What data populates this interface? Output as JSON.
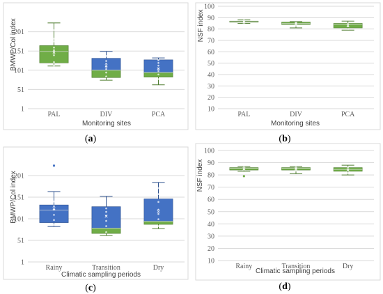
{
  "colors": {
    "green": "#70ad47",
    "blue": "#4472c4",
    "green_dark": "#507e32",
    "blue_dark": "#2f528f",
    "grid": "#d9d9d9",
    "tick": "#595959"
  },
  "chart_data": [
    {
      "panel": "a",
      "caption_letter": "a",
      "type": "box",
      "xlabel": "Monitoring sites",
      "ylabel": "BMWP/Col index",
      "ylim": [
        1,
        251
      ],
      "yticks": [
        1,
        51,
        101,
        151,
        201
      ],
      "grid": true,
      "categories": [
        "PAL",
        "DIV",
        "PCA"
      ],
      "boxes": [
        {
          "category": "PAL",
          "min": 112,
          "q1": 120,
          "median": 150,
          "q3": 165,
          "max": 224,
          "mean": 147,
          "upper_color": "green",
          "lower_color": "green",
          "points": [
            113,
            122,
            140,
            148,
            153,
            160,
            176,
            183,
            205
          ]
        },
        {
          "category": "DIV",
          "min": 75,
          "q1": 82,
          "median": 101,
          "q3": 132,
          "max": 150,
          "mean": 112,
          "upper_color": "blue",
          "lower_color": "green",
          "points": [
            85,
            95,
            104,
            110,
            118,
            125,
            138
          ]
        },
        {
          "category": "PCA",
          "min": 63,
          "q1": 83,
          "median": 95,
          "q3": 128,
          "max": 133,
          "mean": 105,
          "upper_color": "blue",
          "lower_color": "green",
          "points": [
            78,
            90,
            99,
            105,
            113,
            120,
            127
          ]
        }
      ]
    },
    {
      "panel": "b",
      "caption_letter": "b",
      "type": "box",
      "xlabel": "Monitoring sites",
      "ylabel": "NSF index",
      "ylim": [
        10,
        100
      ],
      "yticks": [
        10,
        20,
        30,
        40,
        50,
        60,
        70,
        80,
        90,
        100
      ],
      "grid": true,
      "categories": [
        "PAL",
        "DIV",
        "PCA"
      ],
      "boxes": [
        {
          "category": "PAL",
          "min": 85,
          "q1": 86,
          "median": 86.5,
          "q3": 87,
          "max": 88,
          "mean": 86.3,
          "upper_color": "green",
          "lower_color": "green",
          "points": [
            85.5,
            86.5,
            87.5
          ]
        },
        {
          "category": "DIV",
          "min": 81,
          "q1": 84,
          "median": 85,
          "q3": 86,
          "max": 86.5,
          "mean": 85,
          "upper_color": "green",
          "lower_color": "green",
          "points": [
            83,
            84.5,
            85.5
          ]
        },
        {
          "category": "PCA",
          "min": 79,
          "q1": 81,
          "median": 84,
          "q3": 85,
          "max": 87,
          "mean": 83,
          "upper_color": "green",
          "lower_color": "green",
          "points": [
            80,
            82.5,
            84.5
          ]
        }
      ]
    },
    {
      "panel": "c",
      "caption_letter": "c",
      "type": "box",
      "xlabel": "Climatic sampling periods",
      "ylabel": "BMWP/Col index",
      "ylim": [
        1,
        251
      ],
      "yticks": [
        1,
        51,
        101,
        151,
        201
      ],
      "grid": true,
      "categories": [
        "Rainy",
        "Transition",
        "Dry"
      ],
      "boxes": [
        {
          "category": "Rainy",
          "min": 83,
          "q1": 92,
          "median": 121,
          "q3": 133,
          "max": 164,
          "mean": 124,
          "upper_color": "blue",
          "lower_color": "blue",
          "points": [
            87,
            98,
            110,
            122,
            130,
            141
          ],
          "outliers": [
            224
          ]
        },
        {
          "category": "Transition",
          "min": 62,
          "q1": 67,
          "median": 79,
          "q3": 129,
          "max": 153,
          "mean": 107,
          "upper_color": "blue",
          "lower_color": "green",
          "points": [
            70,
            84,
            96,
            108,
            117,
            125
          ]
        },
        {
          "category": "Dry",
          "min": 78,
          "q1": 88,
          "median": 95,
          "q3": 147,
          "max": 185,
          "mean": 117,
          "upper_color": "blue",
          "lower_color": "green",
          "points": [
            84,
            100,
            112,
            122,
            140,
            158,
            172
          ]
        }
      ]
    },
    {
      "panel": "d",
      "caption_letter": "d",
      "type": "box",
      "xlabel": "Climatic sampling periods",
      "ylabel": "NSF index",
      "ylim": [
        10,
        100
      ],
      "yticks": [
        10,
        20,
        30,
        40,
        50,
        60,
        70,
        80,
        90,
        100
      ],
      "grid": true,
      "categories": [
        "Rainy",
        "Transition",
        "Dry"
      ],
      "boxes": [
        {
          "category": "Rainy",
          "min": 83,
          "q1": 84,
          "median": 85.5,
          "q3": 86,
          "max": 87,
          "mean": 85,
          "upper_color": "green",
          "lower_color": "green",
          "points": [
            84.5,
            86.5
          ],
          "outliers": [
            79
          ]
        },
        {
          "category": "Transition",
          "min": 81,
          "q1": 84,
          "median": 85.5,
          "q3": 86,
          "max": 87,
          "mean": 85,
          "upper_color": "green",
          "lower_color": "green",
          "points": [
            83.5,
            85,
            86.5
          ]
        },
        {
          "category": "Dry",
          "min": 80,
          "q1": 83,
          "median": 84.5,
          "q3": 86,
          "max": 88,
          "mean": 84,
          "upper_color": "green",
          "lower_color": "green",
          "points": [
            81.5,
            84,
            86
          ]
        }
      ]
    }
  ]
}
